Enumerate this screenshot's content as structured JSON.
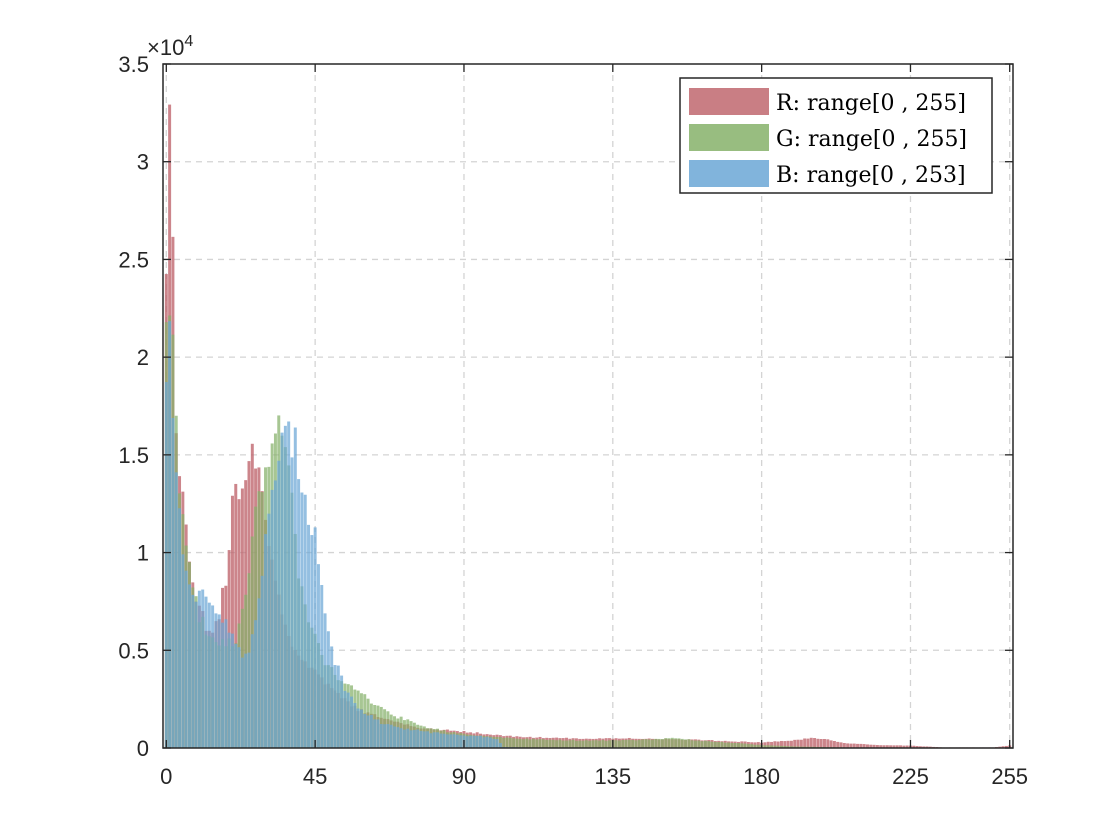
{
  "chart_data": {
    "type": "bar",
    "title": "",
    "xlabel": "",
    "ylabel": "",
    "xlim": [
      -1,
      256
    ],
    "ylim": [
      0,
      35000
    ],
    "y_scale_exponent": {
      "base": "×10",
      "power": "4"
    },
    "xticks": [
      0,
      45,
      90,
      135,
      180,
      225,
      255
    ],
    "xtick_labels": [
      "0",
      "45",
      "90",
      "135",
      "180",
      "225",
      "255"
    ],
    "yticks": [
      0,
      5000,
      10000,
      15000,
      20000,
      25000,
      30000,
      35000
    ],
    "ytick_labels": [
      "0",
      "0.5",
      "1",
      "1.5",
      "2",
      "2.5",
      "3",
      "3.5"
    ],
    "grid": true,
    "legend_position": "top-right",
    "bins": "0–255 (one bar per intensity value)",
    "series": [
      {
        "name": "R: range[0 , 255]",
        "color": "#c0676f",
        "key_points": [
          [
            0,
            25800
          ],
          [
            1,
            34300
          ],
          [
            2,
            25200
          ],
          [
            3,
            16000
          ],
          [
            5,
            13000
          ],
          [
            8,
            8500
          ],
          [
            12,
            6300
          ],
          [
            15,
            6200
          ],
          [
            18,
            8500
          ],
          [
            20,
            13000
          ],
          [
            22,
            12700
          ],
          [
            24,
            13700
          ],
          [
            26,
            15200
          ],
          [
            28,
            14700
          ],
          [
            30,
            12000
          ],
          [
            33,
            8500
          ],
          [
            36,
            6200
          ],
          [
            40,
            4800
          ],
          [
            45,
            3800
          ],
          [
            50,
            3000
          ],
          [
            55,
            2300
          ],
          [
            60,
            1800
          ],
          [
            70,
            1300
          ],
          [
            80,
            950
          ],
          [
            90,
            850
          ],
          [
            100,
            650
          ],
          [
            110,
            550
          ],
          [
            120,
            500
          ],
          [
            130,
            480
          ],
          [
            140,
            500
          ],
          [
            150,
            450
          ],
          [
            160,
            420
          ],
          [
            170,
            350
          ],
          [
            180,
            280
          ],
          [
            190,
            400
          ],
          [
            195,
            500
          ],
          [
            200,
            450
          ],
          [
            205,
            250
          ],
          [
            215,
            150
          ],
          [
            225,
            120
          ],
          [
            235,
            30
          ],
          [
            250,
            30
          ],
          [
            255,
            130
          ]
        ]
      },
      {
        "name": "G: range[0 , 255]",
        "color": "#86b16a",
        "key_points": [
          [
            0,
            21000
          ],
          [
            1,
            21300
          ],
          [
            2,
            20600
          ],
          [
            3,
            17900
          ],
          [
            4,
            13300
          ],
          [
            6,
            10000
          ],
          [
            8,
            8000
          ],
          [
            10,
            6700
          ],
          [
            12,
            6000
          ],
          [
            15,
            5600
          ],
          [
            18,
            5300
          ],
          [
            21,
            5400
          ],
          [
            24,
            7500
          ],
          [
            26,
            11000
          ],
          [
            28,
            12800
          ],
          [
            30,
            14000
          ],
          [
            32,
            15700
          ],
          [
            34,
            16500
          ],
          [
            36,
            15800
          ],
          [
            38,
            13000
          ],
          [
            40,
            9000
          ],
          [
            44,
            6000
          ],
          [
            48,
            4500
          ],
          [
            52,
            3500
          ],
          [
            56,
            3200
          ],
          [
            60,
            2600
          ],
          [
            65,
            2000
          ],
          [
            70,
            1600
          ],
          [
            75,
            1300
          ],
          [
            80,
            1000
          ],
          [
            90,
            700
          ],
          [
            100,
            550
          ],
          [
            110,
            450
          ],
          [
            120,
            400
          ],
          [
            130,
            380
          ],
          [
            140,
            400
          ],
          [
            150,
            480
          ],
          [
            155,
            500
          ],
          [
            160,
            380
          ],
          [
            170,
            280
          ],
          [
            180,
            150
          ],
          [
            190,
            80
          ],
          [
            200,
            40
          ],
          [
            210,
            20
          ],
          [
            230,
            5
          ],
          [
            255,
            5
          ]
        ]
      },
      {
        "name": "B: range[0 , 253]",
        "color": "#6ba7d6",
        "key_points": [
          [
            0,
            18500
          ],
          [
            1,
            21500
          ],
          [
            2,
            17000
          ],
          [
            4,
            12000
          ],
          [
            6,
            9000
          ],
          [
            8,
            7500
          ],
          [
            10,
            7800
          ],
          [
            12,
            7700
          ],
          [
            14,
            7400
          ],
          [
            17,
            6800
          ],
          [
            20,
            5800
          ],
          [
            23,
            4500
          ],
          [
            25,
            4800
          ],
          [
            27,
            6500
          ],
          [
            29,
            9000
          ],
          [
            31,
            12000
          ],
          [
            33,
            13500
          ],
          [
            35,
            15500
          ],
          [
            37,
            16000
          ],
          [
            39,
            15500
          ],
          [
            41,
            13500
          ],
          [
            43,
            12000
          ],
          [
            45,
            11000
          ],
          [
            48,
            7000
          ],
          [
            50,
            5000
          ],
          [
            54,
            3000
          ],
          [
            58,
            2000
          ],
          [
            65,
            1300
          ],
          [
            72,
            1000
          ],
          [
            80,
            800
          ],
          [
            90,
            650
          ],
          [
            95,
            600
          ],
          [
            100,
            450
          ],
          [
            102,
            50
          ],
          [
            110,
            20
          ],
          [
            150,
            10
          ],
          [
            253,
            5
          ]
        ]
      }
    ]
  }
}
